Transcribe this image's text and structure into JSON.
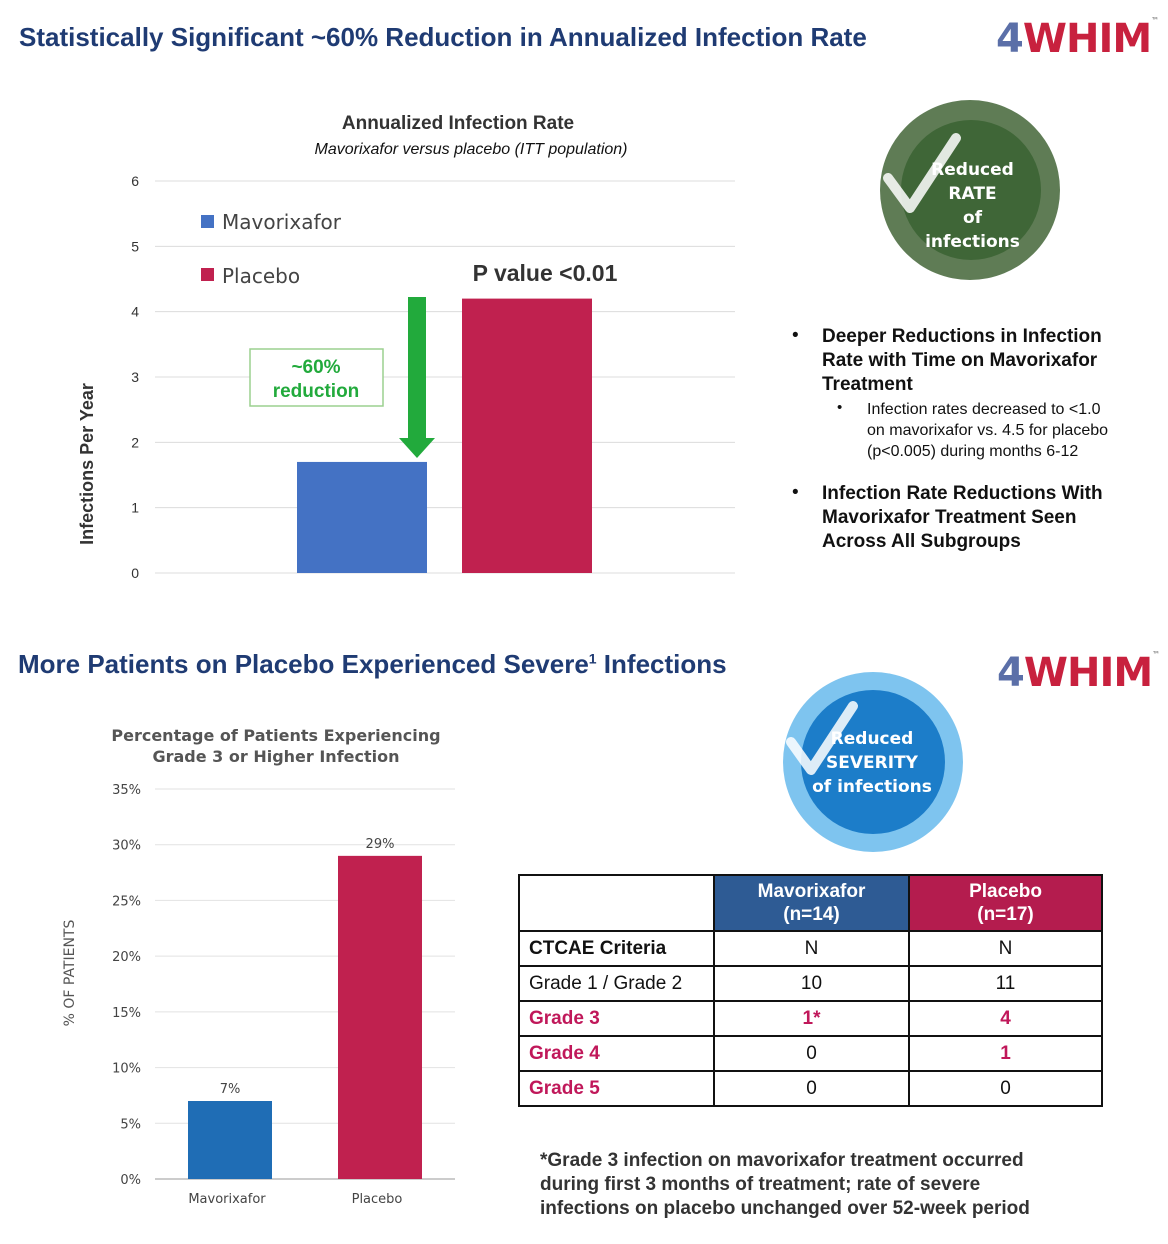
{
  "top": {
    "title": "Statistically Significant ~60% Reduction in Annualized Infection Rate",
    "logo": {
      "four": "4",
      "word": "WHIM",
      "tm": "™"
    },
    "badge": {
      "line1": "Reduced",
      "line2": "RATE",
      "line3": "of infections"
    },
    "bullets": [
      {
        "text": "Deeper Reductions in Infection Rate with Time on Mavorixafor Treatment",
        "lines": [
          "Deeper Reductions in Infection",
          "Rate with Time on Mavorixafor",
          "Treatment"
        ],
        "sub": [
          "Infection rates decreased to <1.0",
          "on mavorixafor vs. 4.5 for placebo",
          "(p<0.005) during months 6-12"
        ]
      },
      {
        "text": "Infection Rate Reductions With Mavorixafor Treatment Seen Across All Subgroups",
        "lines": [
          "Infection Rate Reductions With",
          "Mavorixafor Treatment Seen",
          "Across All Subgroups"
        ]
      }
    ]
  },
  "bottom": {
    "title": "More Patients on Placebo Experienced Severe",
    "title_sup": "1",
    "title_end": " Infections",
    "logo": {
      "four": "4",
      "word": "WHIM",
      "tm": "™"
    },
    "badge": {
      "line1": "Reduced",
      "line2": "SEVERITY",
      "line3": "of infections"
    },
    "table": {
      "headers": [
        {
          "line1": "Mavorixafor",
          "line2": "(n=14)"
        },
        {
          "line1": "Placebo",
          "line2": "(n=17)"
        }
      ],
      "rows": [
        {
          "label": "CTCAE Criteria",
          "mav": "N",
          "pla": "N"
        },
        {
          "label": "Grade 1 / Grade 2",
          "mav": "10",
          "pla": "11"
        },
        {
          "label": "Grade 3",
          "mav": "1*",
          "pla": "4"
        },
        {
          "label": "Grade 4",
          "mav": "0",
          "pla": "1"
        },
        {
          "label": "Grade 5",
          "mav": "0",
          "pla": "0"
        }
      ]
    },
    "footnote": [
      "*Grade 3 infection on mavorixafor treatment occurred",
      "during first 3 months of treatment; rate of severe",
      "infections on placebo unchanged over 52-week period"
    ]
  },
  "colors": {
    "mavorixafor": "#4472c4",
    "placebo": "#c0214f",
    "mav_bar2": "#1f6db5",
    "arrow": "#22aa3c",
    "title": "#1f3b73",
    "table_mav": "#2e5b94",
    "table_pla": "#b41c4e"
  },
  "chart_data": [
    {
      "type": "bar",
      "title": "Annualized Infection Rate",
      "subtitle": "Mavorixafor versus placebo (ITT population)",
      "ylabel": "Infections Per Year",
      "xlabel": "",
      "ylim": [
        0,
        6
      ],
      "yticks": [
        "0",
        "1",
        "2",
        "3",
        "4",
        "5",
        "6"
      ],
      "categories": [
        "Mavorixafor",
        "Placebo"
      ],
      "values": [
        1.7,
        4.2
      ],
      "legend": [
        "Mavorixafor",
        "Placebo"
      ],
      "legend_position": "top-left",
      "annotations": {
        "pvalue": "P value <0.01",
        "reduction_line1": "~60%",
        "reduction_line2": "reduction"
      },
      "grid": true
    },
    {
      "type": "bar",
      "title_line1": "Percentage of Patients Experiencing",
      "title_line2": "Grade 3 or Higher Infection",
      "ylabel": "% OF PATIENTS",
      "xlabel": "",
      "ylim": [
        0,
        35
      ],
      "yticks": [
        "0%",
        "5%",
        "10%",
        "15%",
        "20%",
        "25%",
        "30%",
        "35%"
      ],
      "categories": [
        "Mavorixafor",
        "Placebo"
      ],
      "values": [
        7,
        29
      ],
      "data_labels": [
        "7%",
        "29%"
      ],
      "grid": true
    }
  ]
}
